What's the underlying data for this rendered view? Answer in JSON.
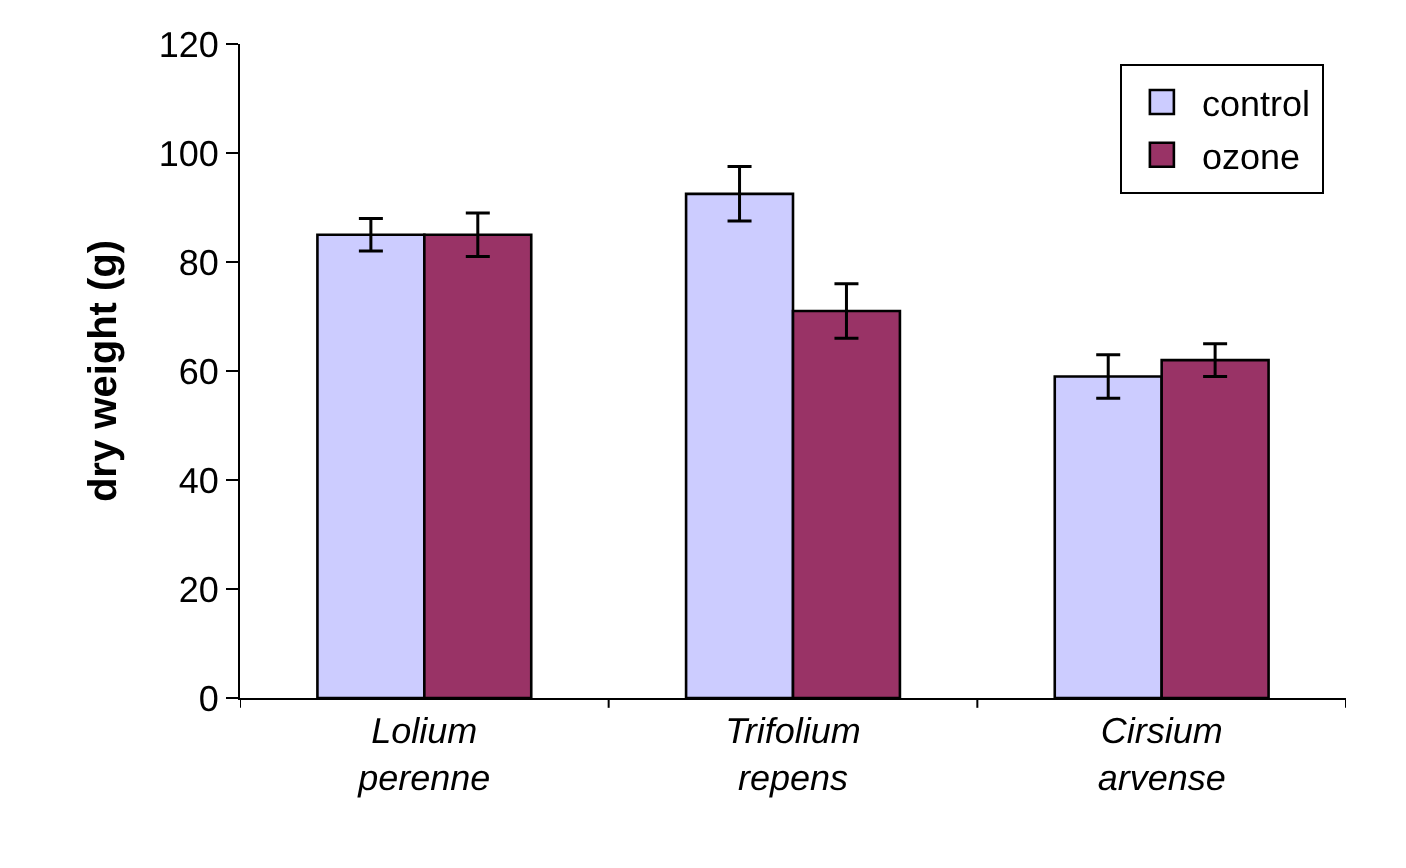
{
  "chart_data": {
    "type": "bar",
    "ylabel": "dry weight (g)",
    "categories": [
      "Lolium perenne",
      "Trifolium repens",
      "Cirsium arvense"
    ],
    "series": [
      {
        "name": "control",
        "color": "#ccccff",
        "values": [
          85,
          92.5,
          59
        ],
        "errors": [
          3,
          5,
          4
        ]
      },
      {
        "name": "ozone",
        "color": "#993366",
        "values": [
          85,
          71,
          62
        ],
        "errors": [
          4,
          5,
          3
        ]
      }
    ],
    "ylim": [
      0,
      120
    ],
    "yticks": [
      0,
      20,
      40,
      60,
      80,
      100,
      120
    ],
    "legend": "top right"
  }
}
